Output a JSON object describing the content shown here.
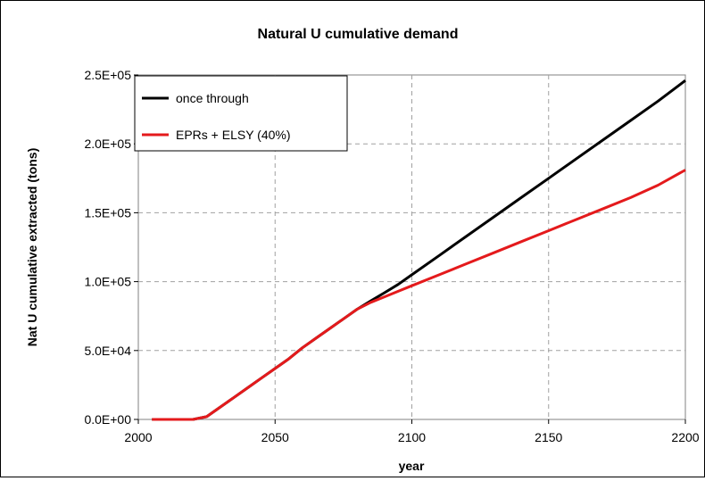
{
  "chart_data": {
    "type": "line",
    "title": "Natural U cumulative demand",
    "xlabel": "year",
    "ylabel": "Nat U cumulative extracted (tons)",
    "xlim": [
      2000,
      2200
    ],
    "ylim": [
      0,
      250000
    ],
    "x_ticks": [
      "2000",
      "2050",
      "2100",
      "2150",
      "2200"
    ],
    "y_ticks": [
      "0.0E+00",
      "5.0E+04",
      "1.0E+05",
      "1.5E+05",
      "2.0E+05",
      "2.5E+05"
    ],
    "grid": true,
    "legend_position": "top-left",
    "series": [
      {
        "name": "once through",
        "color": "#000000",
        "x": [
          2005,
          2010,
          2015,
          2020,
          2025,
          2030,
          2035,
          2040,
          2045,
          2050,
          2055,
          2060,
          2065,
          2070,
          2075,
          2080,
          2085,
          2090,
          2095,
          2100,
          2110,
          2120,
          2130,
          2140,
          2150,
          2160,
          2170,
          2180,
          2190,
          2200
        ],
        "y": [
          0,
          0,
          0,
          0,
          2000,
          9000,
          16000,
          23000,
          30000,
          37000,
          44000,
          52000,
          59000,
          66000,
          73000,
          80000,
          86000,
          92000,
          98000,
          105000,
          119000,
          133000,
          147000,
          161000,
          175000,
          189000,
          203000,
          217000,
          231000,
          246000
        ]
      },
      {
        "name": "EPRs + ELSY (40%)",
        "color": "#e41a1c",
        "x": [
          2005,
          2010,
          2015,
          2020,
          2025,
          2030,
          2035,
          2040,
          2045,
          2050,
          2055,
          2060,
          2065,
          2070,
          2075,
          2080,
          2085,
          2090,
          2095,
          2100,
          2110,
          2120,
          2130,
          2140,
          2150,
          2160,
          2170,
          2180,
          2190,
          2200
        ],
        "y": [
          0,
          0,
          0,
          0,
          2000,
          9000,
          16000,
          23000,
          30000,
          37000,
          44000,
          52000,
          59000,
          66000,
          73000,
          80000,
          85000,
          89000,
          93000,
          97000,
          105000,
          113000,
          121000,
          129000,
          137000,
          145000,
          153000,
          161000,
          170000,
          181000
        ]
      }
    ]
  }
}
